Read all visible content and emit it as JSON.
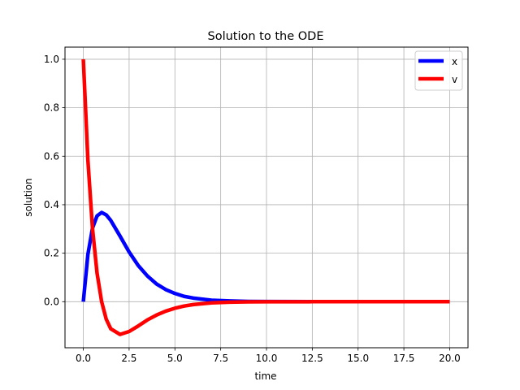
{
  "chart_data": {
    "type": "line",
    "title": "Solution to the ODE",
    "xlabel": "time",
    "ylabel": "solution",
    "xlim": [
      -1.0,
      21.0
    ],
    "ylim": [
      -0.19,
      1.05
    ],
    "xticks": [
      0.0,
      2.5,
      5.0,
      7.5,
      10.0,
      12.5,
      15.0,
      17.5,
      20.0
    ],
    "xtick_labels": [
      "0.0",
      "2.5",
      "5.0",
      "7.5",
      "10.0",
      "12.5",
      "15.0",
      "17.5",
      "20.0"
    ],
    "yticks": [
      0.0,
      0.2,
      0.4,
      0.6,
      0.8,
      1.0
    ],
    "ytick_labels": [
      "0.0",
      "0.2",
      "0.4",
      "0.6",
      "0.8",
      "1.0"
    ],
    "grid": true,
    "legend_position": "top-right",
    "series": [
      {
        "name": "x",
        "color": "#0000ff",
        "x": [
          0,
          0.25,
          0.5,
          0.75,
          1.0,
          1.25,
          1.5,
          2.0,
          2.5,
          3.0,
          3.5,
          4.0,
          4.5,
          5.0,
          5.5,
          6.0,
          7.0,
          8.0,
          9.0,
          10.0,
          12.5,
          15.0,
          17.5,
          20.0
        ],
        "y": [
          0.0,
          0.195,
          0.303,
          0.354,
          0.368,
          0.358,
          0.335,
          0.271,
          0.205,
          0.149,
          0.106,
          0.073,
          0.05,
          0.034,
          0.022,
          0.015,
          0.006,
          0.003,
          0.001,
          0.0005,
          0.0,
          0.0,
          0.0,
          0.0
        ]
      },
      {
        "name": "v",
        "color": "#ff0000",
        "x": [
          0,
          0.25,
          0.5,
          0.75,
          1.0,
          1.25,
          1.5,
          2.0,
          2.5,
          3.0,
          3.5,
          4.0,
          4.5,
          5.0,
          5.5,
          6.0,
          7.0,
          8.0,
          9.0,
          10.0,
          12.5,
          15.0,
          17.5,
          20.0
        ],
        "y": [
          1.0,
          0.584,
          0.303,
          0.118,
          0.0,
          -0.072,
          -0.112,
          -0.135,
          -0.123,
          -0.1,
          -0.075,
          -0.055,
          -0.039,
          -0.027,
          -0.018,
          -0.012,
          -0.005,
          -0.002,
          -0.0008,
          -0.0003,
          0.0,
          0.0,
          0.0,
          0.0
        ]
      }
    ]
  }
}
